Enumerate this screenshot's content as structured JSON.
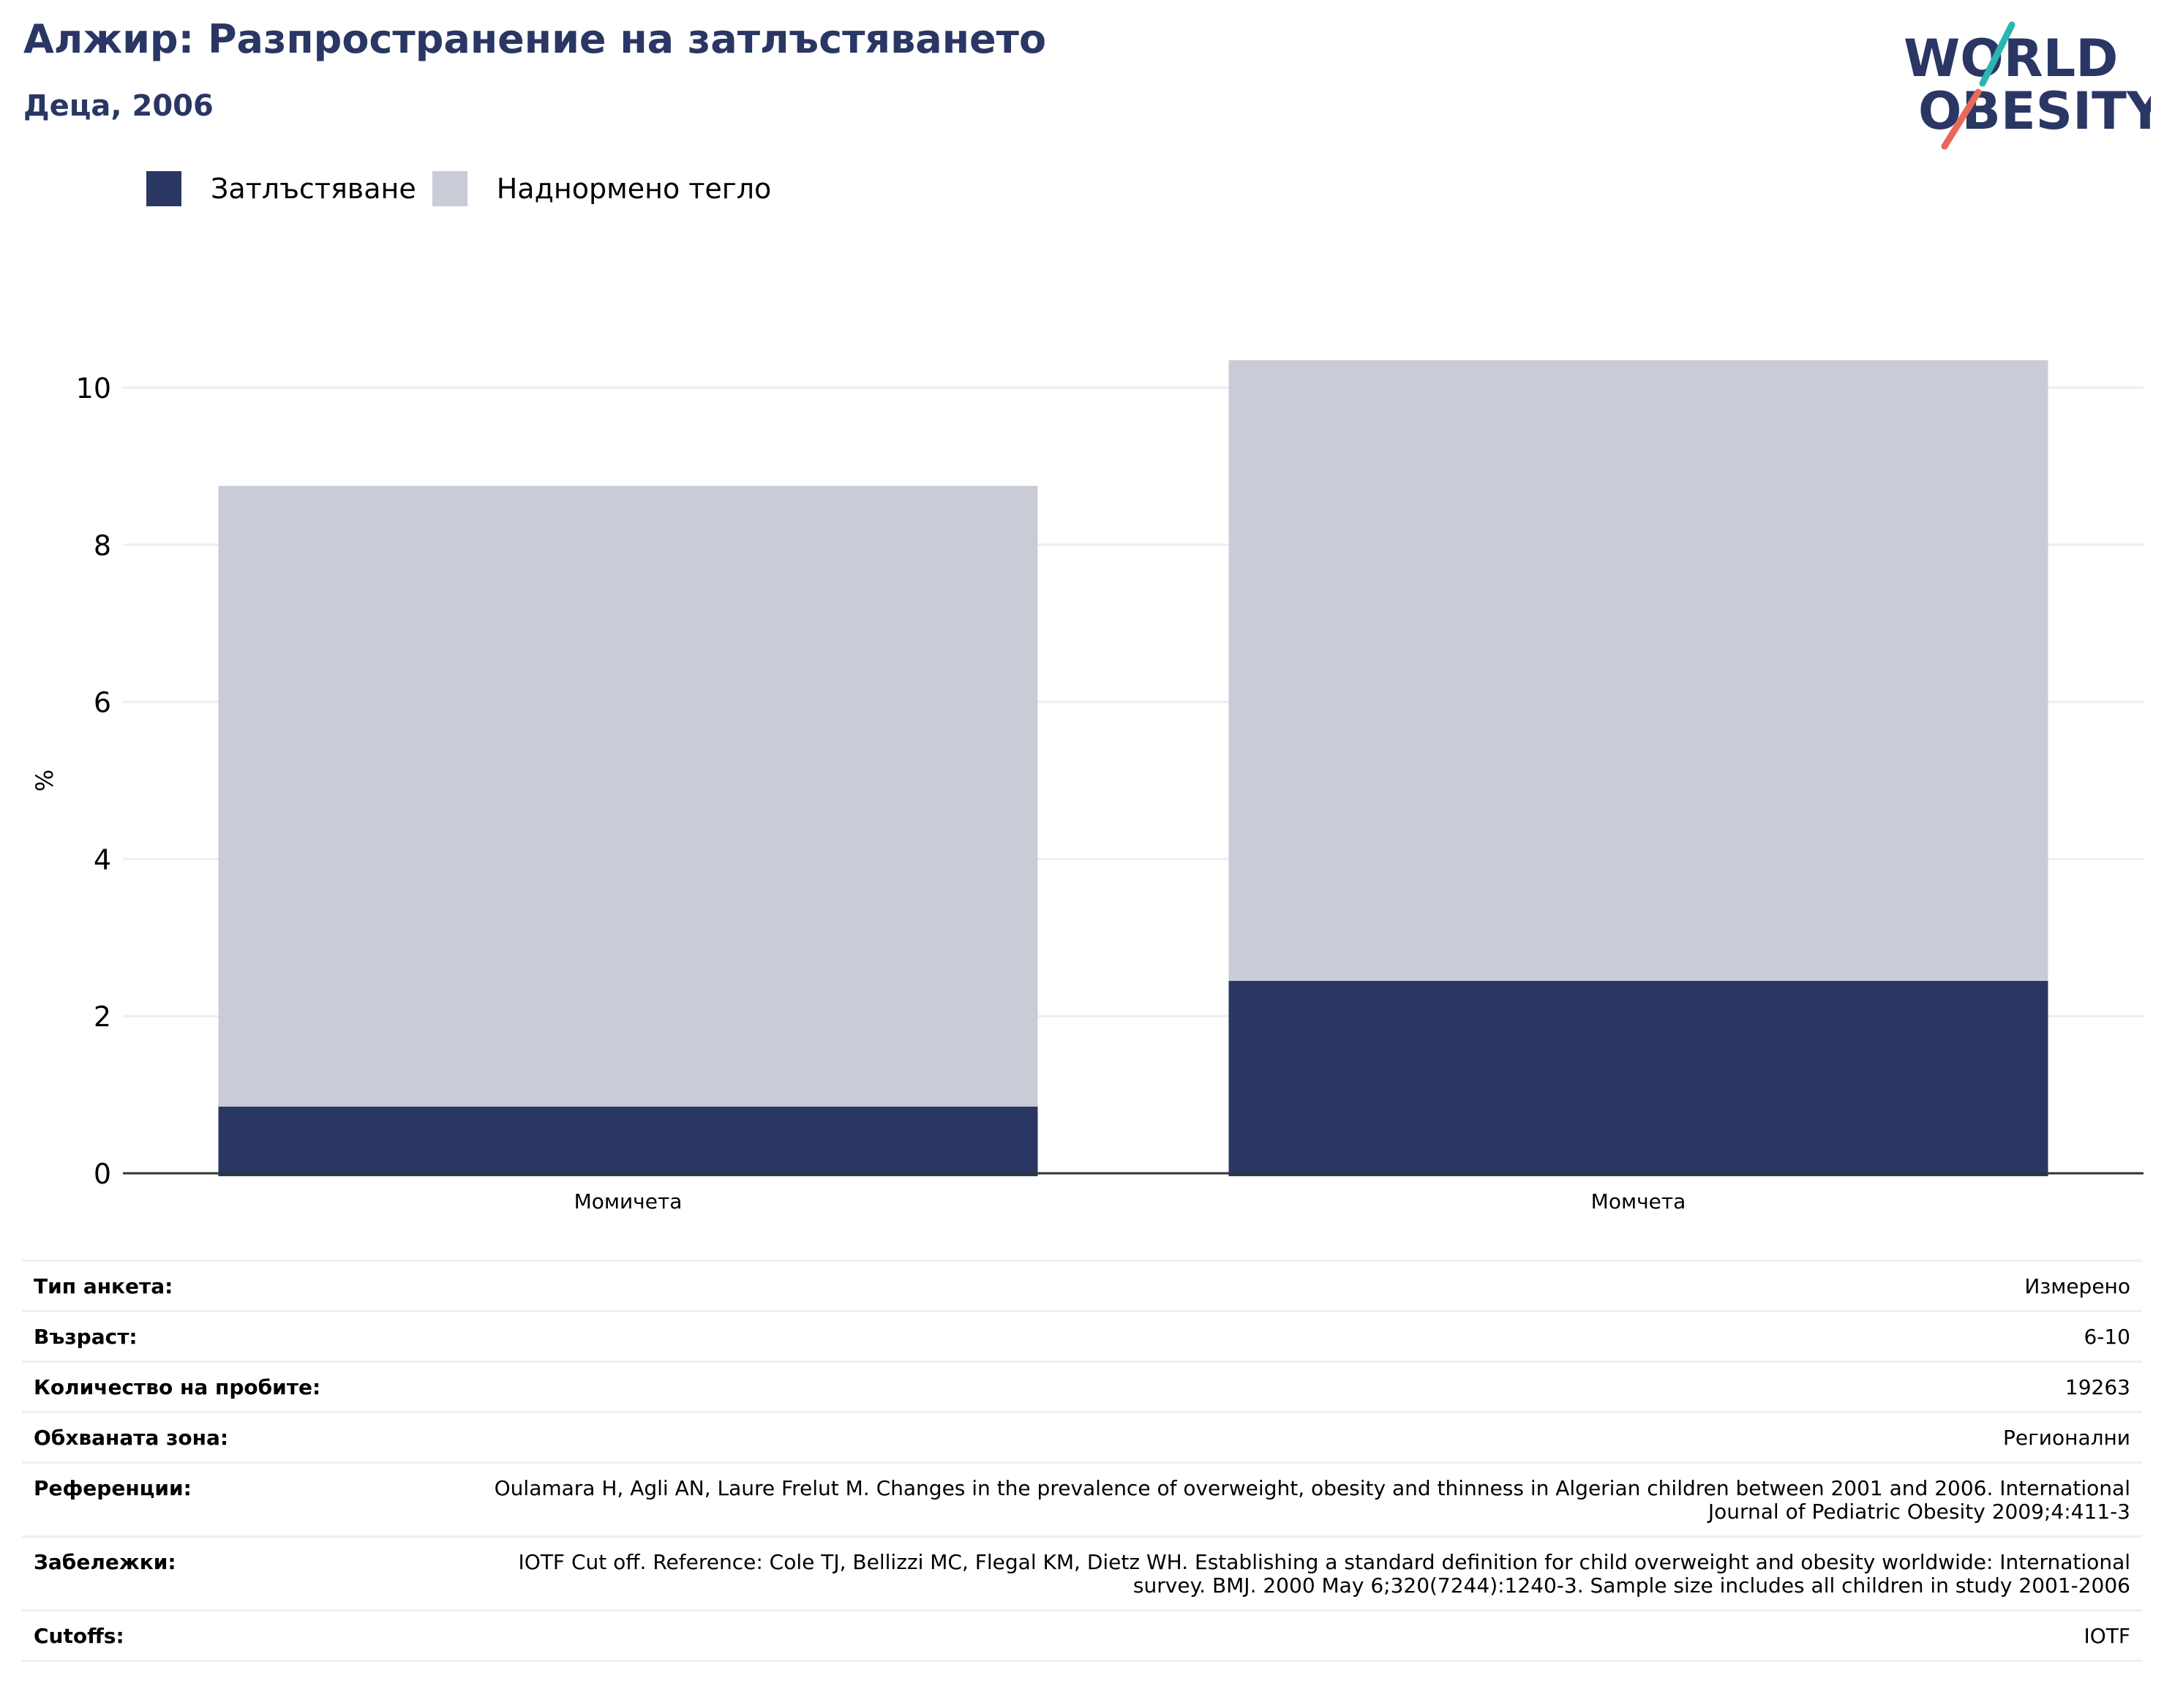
{
  "header": {
    "title": "Алжир: Разпространение на затлъстяването",
    "subtitle": "Деца, 2006"
  },
  "logo": {
    "line1": "WORLD",
    "line2": "OBESITY",
    "colors": {
      "text": "#2a3664",
      "slash_top": "#2bb5b0",
      "slash_bottom": "#e8685a"
    }
  },
  "legend": [
    {
      "label": "Затлъстяване",
      "color": "#2a3664"
    },
    {
      "label": "Наднормено тегло",
      "color": "#c9cbd7"
    }
  ],
  "chart_data": {
    "type": "bar",
    "stacked": true,
    "categories": [
      "Момичета",
      "Момчета"
    ],
    "series": [
      {
        "name": "Затлъстяване",
        "values": [
          0.85,
          2.45
        ],
        "color": "#2a3664"
      },
      {
        "name": "Наднормено тегло",
        "values": [
          7.9,
          7.9
        ],
        "color": "#c9cbd7"
      }
    ],
    "ylabel": "%",
    "ylim": [
      0,
      10.5
    ],
    "yticks": [
      0,
      2,
      4,
      6,
      8,
      10
    ],
    "grid": true,
    "legend_position": "top-left"
  },
  "info": [
    {
      "label": "Тип анкета:",
      "value": "Измерено"
    },
    {
      "label": "Възраст:",
      "value": "6-10"
    },
    {
      "label": "Количество на пробите:",
      "value": "19263"
    },
    {
      "label": "Обхваната зона:",
      "value": "Регионални"
    },
    {
      "label": "Референции:",
      "value": "Oulamara H, Agli AN, Laure Frelut M. Changes in the prevalence of overweight, obesity and thinness in Algerian children between 2001 and 2006. International Journal of Pediatric Obesity 2009;4:411-3"
    },
    {
      "label": "Забележки:",
      "value": "IOTF Cut off. Reference: Cole TJ, Bellizzi MC, Flegal KM, Dietz WH. Establishing a standard definition for child overweight and obesity worldwide: International survey. BMJ. 2000 May 6;320(7244):1240-3. Sample size includes all children in study 2001-2006"
    },
    {
      "label": "Cutoffs:",
      "value": "IOTF"
    }
  ]
}
